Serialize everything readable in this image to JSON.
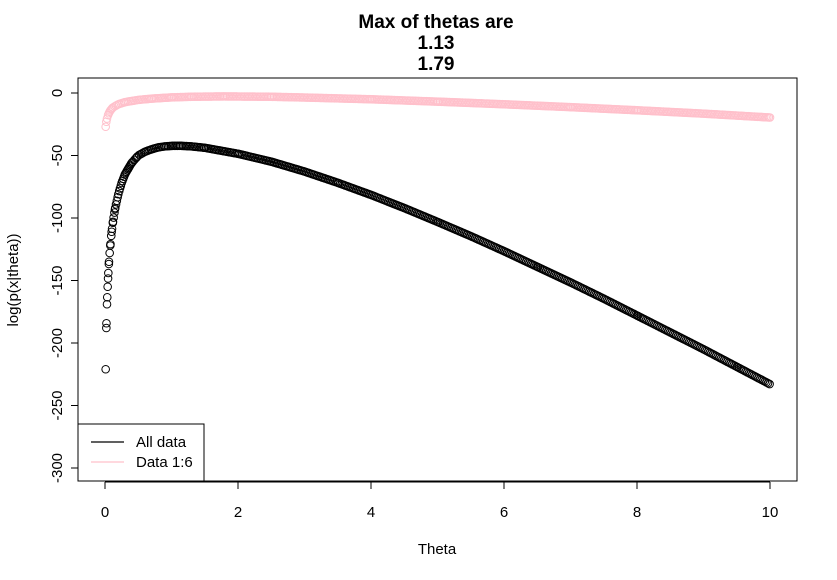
{
  "chart_data": {
    "type": "scatter",
    "title": [
      "Max of thetas are",
      "1.13",
      "1.79"
    ],
    "xlabel": "Theta",
    "ylabel": "log(p(x|theta))",
    "xlim": [
      0,
      10
    ],
    "ylim": [
      -300,
      0
    ],
    "xticks": [
      0,
      2,
      4,
      6,
      8,
      10
    ],
    "yticks": [
      0,
      -50,
      -100,
      -150,
      -200,
      -250,
      -300
    ],
    "grid": false,
    "legend": {
      "position": "bottom-left",
      "entries": [
        {
          "name": "All data",
          "color": "#000000"
        },
        {
          "name": "Data 1:6",
          "color": "#ffc0cb"
        }
      ]
    },
    "series": [
      {
        "name": "All data",
        "color": "#000000",
        "marker": "open-circle",
        "max_theta": 1.13,
        "points": [
          [
            0.01,
            -221
          ],
          [
            0.02,
            -188
          ],
          [
            0.03,
            -169
          ],
          [
            0.04,
            -155
          ],
          [
            0.05,
            -144
          ],
          [
            0.06,
            -135
          ],
          [
            0.07,
            -128
          ],
          [
            0.08,
            -122
          ],
          [
            0.1,
            -111
          ],
          [
            0.12,
            -103
          ],
          [
            0.15,
            -93
          ],
          [
            0.2,
            -81
          ],
          [
            0.25,
            -72
          ],
          [
            0.3,
            -65
          ],
          [
            0.4,
            -56
          ],
          [
            0.5,
            -50
          ],
          [
            0.6,
            -47
          ],
          [
            0.7,
            -45
          ],
          [
            0.8,
            -43.5
          ],
          [
            0.9,
            -42.7
          ],
          [
            1.0,
            -42.3
          ],
          [
            1.13,
            -42.2
          ],
          [
            1.3,
            -42.7
          ],
          [
            1.5,
            -43.8
          ],
          [
            2.0,
            -48.6
          ],
          [
            2.5,
            -54.9
          ],
          [
            3.0,
            -62.8
          ],
          [
            3.5,
            -71.8
          ],
          [
            4.0,
            -81.5
          ],
          [
            4.5,
            -92
          ],
          [
            5.0,
            -103.1
          ],
          [
            5.5,
            -114.5
          ],
          [
            6.0,
            -126.5
          ],
          [
            6.5,
            -139
          ],
          [
            7.0,
            -151.5
          ],
          [
            7.5,
            -164.5
          ],
          [
            8.0,
            -178
          ],
          [
            8.5,
            -191.5
          ],
          [
            9.0,
            -205
          ],
          [
            9.5,
            -219
          ],
          [
            10.0,
            -233
          ]
        ]
      },
      {
        "name": "Data 1:6",
        "color": "#ffc0cb",
        "marker": "open-circle",
        "max_theta": 1.79,
        "points": [
          [
            0.01,
            -27
          ],
          [
            0.02,
            -23
          ],
          [
            0.03,
            -20.5
          ],
          [
            0.05,
            -17
          ],
          [
            0.08,
            -14
          ],
          [
            0.12,
            -11.5
          ],
          [
            0.2,
            -9
          ],
          [
            0.3,
            -7.3
          ],
          [
            0.5,
            -5.5
          ],
          [
            0.7,
            -4.5
          ],
          [
            1.0,
            -3.5
          ],
          [
            1.3,
            -3.0
          ],
          [
            1.79,
            -2.7
          ],
          [
            2.5,
            -3.0
          ],
          [
            3.0,
            -3.6
          ],
          [
            4.0,
            -5.0
          ],
          [
            5.0,
            -6.9
          ],
          [
            6.0,
            -9.0
          ],
          [
            7.0,
            -11.3
          ],
          [
            8.0,
            -13.8
          ],
          [
            9.0,
            -16.5
          ],
          [
            10.0,
            -19.6
          ]
        ]
      }
    ]
  }
}
